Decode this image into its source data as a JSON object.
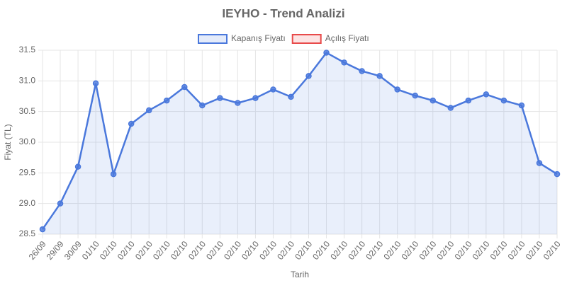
{
  "chart_data": {
    "type": "line",
    "title": "IEYHO - Trend Analizi",
    "xlabel": "Tarih",
    "ylabel": "Fiyat (TL)",
    "categories": [
      "26/09",
      "29/09",
      "30/09",
      "01/10",
      "02/10",
      "02/10",
      "02/10",
      "02/10",
      "02/10",
      "02/10",
      "02/10",
      "02/10",
      "02/10",
      "02/10",
      "02/10",
      "02/10",
      "02/10",
      "02/10",
      "02/10",
      "02/10",
      "02/10",
      "02/10",
      "02/10",
      "02/10",
      "02/10",
      "02/10",
      "02/10",
      "02/10",
      "02/10",
      "02/10"
    ],
    "series": [
      {
        "name": "Kapanış Fiyatı",
        "color": "#4a78dc",
        "values": [
          28.58,
          29.0,
          29.6,
          30.96,
          29.48,
          30.3,
          30.52,
          30.68,
          30.9,
          30.6,
          30.72,
          30.64,
          30.72,
          30.86,
          30.74,
          31.08,
          31.46,
          31.3,
          31.16,
          31.08,
          30.86,
          30.76,
          30.68,
          30.56,
          30.68,
          30.78,
          30.68,
          30.6,
          29.66,
          29.48
        ]
      },
      {
        "name": "Açılış Fiyatı",
        "color": "#e84a4a",
        "values": [
          null,
          null,
          null,
          null,
          null,
          null,
          null,
          null,
          null,
          null,
          null,
          null,
          null,
          null,
          null,
          null,
          null,
          null,
          null,
          null,
          null,
          null,
          null,
          null,
          null,
          null,
          null,
          null,
          null,
          null
        ]
      }
    ],
    "ylim": [
      28.5,
      31.5
    ],
    "yticks": [
      28.5,
      {
        "value": 29,
        "label": "29.0"
      },
      29.5,
      {
        "value": 30,
        "label": "30.0"
      },
      30.5,
      {
        "value": 31,
        "label": "31.0"
      },
      31.5
    ],
    "grid": true,
    "legend": "top"
  }
}
